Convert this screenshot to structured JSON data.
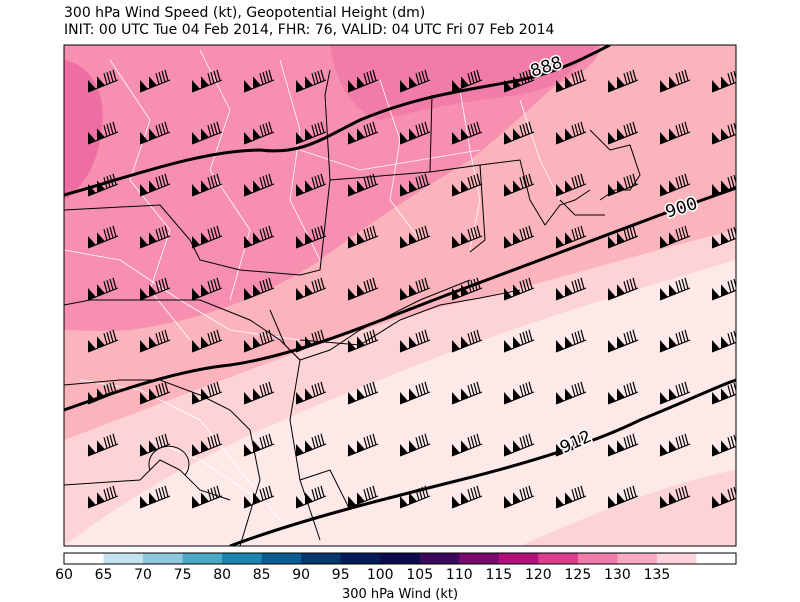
{
  "header": {
    "title_line1": "300 hPa Wind Speed (kt), Geopotential Height (dm)",
    "title_line2": "INIT: 00 UTC Tue 04 Feb 2014, FHR: 76, VALID: 04 UTC Fri 07 Feb 2014"
  },
  "contours": {
    "labels": [
      "888",
      "900",
      "912"
    ]
  },
  "colorbar": {
    "ticks": [
      "60",
      "65",
      "70",
      "75",
      "80",
      "85",
      "90",
      "95",
      "100",
      "105",
      "110",
      "115",
      "120",
      "125",
      "130",
      "135"
    ],
    "label": "300 hPa Wind (kt)",
    "colors": [
      "#ffffff",
      "#c6e2ef",
      "#8ec8dc",
      "#4ba9c7",
      "#1a86b0",
      "#0a5d93",
      "#07366e",
      "#061a5c",
      "#0c0b4f",
      "#3b0a5e",
      "#7a0a6e",
      "#b3107c",
      "#dc3b8e",
      "#f27aab",
      "#f9a9c2",
      "#fdd3dc",
      "#ffffff"
    ]
  },
  "map_colors": {
    "wind_125_130": "#fdd3d6",
    "wind_120_125": "#fbb3bc",
    "wind_115_120": "#f68fb0",
    "wind_110_115": "#ee6ea3",
    "wind_130_135": "#fdeae8",
    "land_border": "#000000",
    "county_border": "#ffffff"
  }
}
